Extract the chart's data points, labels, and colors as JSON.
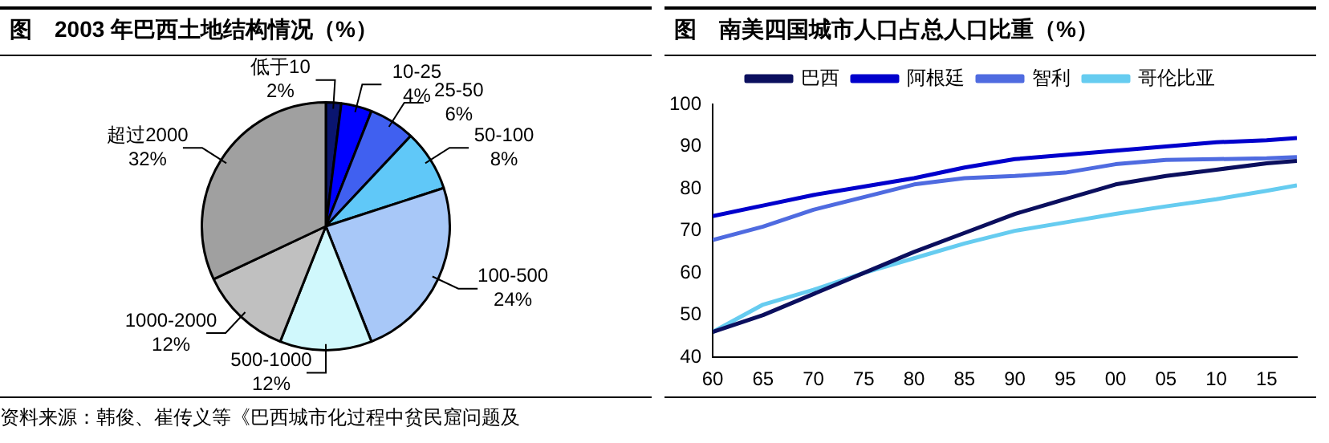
{
  "chart_data": [
    {
      "type": "pie",
      "title": "图　2003 年巴西土地结构情况（%）",
      "categories": [
        "低于10",
        "10-25",
        "25-50",
        "50-100",
        "100-500",
        "500-1000",
        "1000-2000",
        "超过2000"
      ],
      "values": [
        2,
        4,
        6,
        8,
        24,
        12,
        12,
        32
      ],
      "value_labels": [
        "2%",
        "4%",
        "6%",
        "8%",
        "24%",
        "12%",
        "12%",
        "32%"
      ],
      "colors": [
        "#0a1570",
        "#0000ff",
        "#4060f0",
        "#60c8f8",
        "#a8c8f8",
        "#d0f8fc",
        "#c0c0c0",
        "#a0a0a0"
      ],
      "annotations": [
        "资料来源：韩俊、崔传义等《巴西城市化过程中贫民窟问题及"
      ]
    },
    {
      "type": "line",
      "title": "图　南美四国城市人口占总人口比重（%）",
      "x": [
        1960,
        1965,
        1970,
        1975,
        1980,
        1985,
        1990,
        1995,
        2000,
        2005,
        2010,
        2015,
        2018
      ],
      "series": [
        {
          "name": "巴西",
          "color": "#0b0f5e",
          "values": [
            46,
            50,
            55,
            60,
            65,
            69.5,
            74,
            77.5,
            81,
            83,
            84.5,
            86,
            86.6
          ]
        },
        {
          "name": "阿根廷",
          "color": "#0000cc",
          "values": [
            73.5,
            76,
            78.5,
            80.5,
            82.5,
            85,
            87,
            88,
            89,
            90,
            91,
            91.5,
            92
          ]
        },
        {
          "name": "智利",
          "color": "#4f6be0",
          "values": [
            67.8,
            71,
            75,
            78,
            81,
            82.5,
            83,
            83.8,
            85.8,
            86.8,
            87,
            87.2,
            87.5
          ]
        },
        {
          "name": "哥伦比亚",
          "color": "#66ccf0",
          "values": [
            46,
            52.5,
            56,
            60,
            63.5,
            67,
            70,
            72,
            74,
            75.8,
            77.5,
            79.5,
            80.8
          ]
        }
      ],
      "xlim": [
        1960,
        2018
      ],
      "xticks": [
        {
          "value": 1960,
          "label": "60"
        },
        {
          "value": 1965,
          "label": "65"
        },
        {
          "value": 1970,
          "label": "70"
        },
        {
          "value": 1975,
          "label": "75"
        },
        {
          "value": 1980,
          "label": "80"
        },
        {
          "value": 1985,
          "label": "85"
        },
        {
          "value": 1990,
          "label": "90"
        },
        {
          "value": 1995,
          "label": "95"
        },
        {
          "value": 2000,
          "label": "00"
        },
        {
          "value": 2005,
          "label": "05"
        },
        {
          "value": 2010,
          "label": "10"
        },
        {
          "value": 2015,
          "label": "15"
        }
      ],
      "ylim": [
        40,
        100
      ],
      "yticks": [
        40,
        50,
        60,
        70,
        80,
        90,
        100
      ],
      "grid": false,
      "legend": "top",
      "marker": "none",
      "line_style": "solid"
    }
  ]
}
